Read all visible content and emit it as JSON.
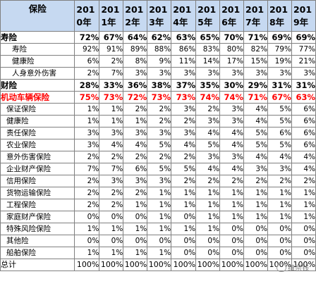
{
  "corner_label": "保险",
  "years": [
    "2010年",
    "2011年",
    "2012年",
    "2013年",
    "2014年",
    "2015年",
    "2016年",
    "2017年",
    "2018年",
    "2019年"
  ],
  "year_headers": [
    {
      "a": "201",
      "b": "0年"
    },
    {
      "a": "201",
      "b": "1年"
    },
    {
      "a": "201",
      "b": "2年"
    },
    {
      "a": "201",
      "b": "3年"
    },
    {
      "a": "201",
      "b": "4年"
    },
    {
      "a": "201",
      "b": "5年"
    },
    {
      "a": "201",
      "b": "6年"
    },
    {
      "a": "201",
      "b": "7年"
    },
    {
      "a": "201",
      "b": "8年"
    },
    {
      "a": "201",
      "b": "9年"
    }
  ],
  "rows": [
    {
      "label": "寿险",
      "style": "grp",
      "values": [
        "72%",
        "67%",
        "64%",
        "62%",
        "63%",
        "65%",
        "70%",
        "71%",
        "69%",
        "69%"
      ]
    },
    {
      "label": "寿险",
      "style": "sub",
      "values": [
        "92%",
        "91%",
        "89%",
        "88%",
        "86%",
        "83%",
        "80%",
        "82%",
        "79%",
        "77%"
      ]
    },
    {
      "label": "健康险",
      "style": "sub",
      "values": [
        "6%",
        "2%",
        "8%",
        "9%",
        "11%",
        "14%",
        "17%",
        "15%",
        "19%",
        "21%"
      ]
    },
    {
      "label": "人身意外伤害",
      "style": "sub",
      "values": [
        "2%",
        "7%",
        "3%",
        "3%",
        "3%",
        "3%",
        "3%",
        "3%",
        "3%",
        "3%"
      ]
    },
    {
      "label": "财险",
      "style": "grp",
      "values": [
        "28%",
        "33%",
        "36%",
        "38%",
        "37%",
        "35%",
        "30%",
        "29%",
        "31%",
        "31%"
      ]
    },
    {
      "label": "机动车辆保险",
      "style": "red",
      "values": [
        "75%",
        "73%",
        "72%",
        "73%",
        "73%",
        "74%",
        "74%",
        "71%",
        "67%",
        "63%"
      ]
    },
    {
      "label": "保证保险",
      "style": "sub2",
      "values": [
        "1%",
        "1%",
        "2%",
        "2%",
        "3%",
        "2%",
        "3%",
        "4%",
        "5%",
        "6%"
      ]
    },
    {
      "label": "健康险",
      "style": "sub2",
      "values": [
        "1%",
        "1%",
        "1%",
        "2%",
        "2%",
        "3%",
        "3%",
        "4%",
        "5%",
        "6%"
      ]
    },
    {
      "label": "责任保险",
      "style": "sub2",
      "values": [
        "3%",
        "3%",
        "3%",
        "3%",
        "3%",
        "4%",
        "4%",
        "5%",
        "6%",
        "6%"
      ]
    },
    {
      "label": "农业保险",
      "style": "sub2",
      "values": [
        "3%",
        "4%",
        "4%",
        "5%",
        "4%",
        "5%",
        "4%",
        "5%",
        "5%",
        "6%"
      ]
    },
    {
      "label": "意外伤害保险",
      "style": "sub2",
      "values": [
        "2%",
        "2%",
        "2%",
        "2%",
        "2%",
        "3%",
        "3%",
        "4%",
        "4%",
        "4%"
      ]
    },
    {
      "label": "企业财产保险",
      "style": "sub2",
      "values": [
        "7%",
        "7%",
        "6%",
        "5%",
        "5%",
        "4%",
        "4%",
        "3%",
        "3%",
        "4%"
      ]
    },
    {
      "label": "信用保险",
      "style": "sub2",
      "values": [
        "2%",
        "3%",
        "3%",
        "3%",
        "2%",
        "2%",
        "2%",
        "2%",
        "2%",
        "2%"
      ]
    },
    {
      "label": "货物运输保险",
      "style": "sub2",
      "values": [
        "2%",
        "2%",
        "2%",
        "1%",
        "1%",
        "1%",
        "1%",
        "1%",
        "1%",
        "1%"
      ]
    },
    {
      "label": "工程保险",
      "style": "sub2",
      "values": [
        "2%",
        "2%",
        "1%",
        "1%",
        "1%",
        "1%",
        "1%",
        "1%",
        "1%",
        "1%"
      ]
    },
    {
      "label": "家庭财产保险",
      "style": "sub2",
      "values": [
        "0%",
        "0%",
        "0%",
        "1%",
        "0%",
        "1%",
        "1%",
        "1%",
        "1%",
        "1%"
      ]
    },
    {
      "label": "特殊风险保险",
      "style": "sub2",
      "values": [
        "1%",
        "1%",
        "1%",
        "1%",
        "1%",
        "1%",
        "0%",
        "0%",
        "0%",
        "0%"
      ]
    },
    {
      "label": "其他险",
      "style": "sub2",
      "values": [
        "0%",
        "0%",
        "0%",
        "0%",
        "0%",
        "0%",
        "0%",
        "0%",
        "0%",
        "0%"
      ]
    },
    {
      "label": "船舶保险",
      "style": "sub2",
      "values": [
        "1%",
        "1%",
        "1%",
        "1%",
        "0%",
        "0%",
        "0%",
        "0%",
        "0%",
        "0%"
      ]
    },
    {
      "label": "总计",
      "style": "total",
      "values": [
        "100%",
        "100%",
        "100%",
        "100%",
        "100%",
        "100%",
        "100%",
        "100%",
        "100%",
        "100%"
      ]
    }
  ],
  "watermark": "维宗钱"
}
